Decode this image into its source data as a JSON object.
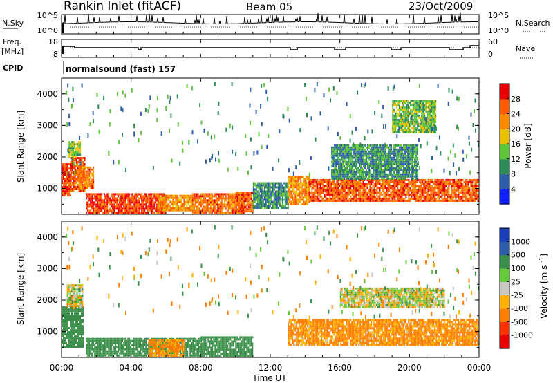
{
  "header": {
    "title": "Rankin Inlet (fitACF)",
    "beam": "Beam 05",
    "date": "23/Oct/2009"
  },
  "noise_panel": {
    "left_label": "N.Sky",
    "right_label": "N.Search",
    "left_ticks": [
      "10^5",
      "10^0"
    ],
    "right_ticks": [
      "10^5",
      "10^0"
    ]
  },
  "freq_panel": {
    "left_label_1": "Freq.",
    "left_label_2": "[MHz]",
    "right_label": "Nave",
    "left_ticks": [
      "18",
      "8"
    ],
    "right_ticks": [
      "60",
      "0"
    ]
  },
  "cpid": {
    "label": "CPID",
    "value": "normalsound (fast) 157"
  },
  "x_axis": {
    "title": "Time UT",
    "ticks": [
      "00:00",
      "04:00",
      "08:00",
      "12:00",
      "16:00",
      "20:00",
      "00:00"
    ]
  },
  "y_axis": {
    "title": "Slant Range [km]",
    "ticks": [
      "1000",
      "2000",
      "3000",
      "4000"
    ]
  },
  "power_colorbar": {
    "title": "Power [dB]",
    "ticks": [
      "4",
      "8",
      "12",
      "16",
      "20",
      "24",
      "28"
    ],
    "colors": [
      "#1020ff",
      "#2f5da8",
      "#2e8b57",
      "#5fc43a",
      "#e8c200",
      "#ff8c00",
      "#ff5a00",
      "#e80000"
    ]
  },
  "velocity_colorbar": {
    "title": "Velocity [m s^-1]",
    "ticks": [
      "1000",
      "500",
      "100",
      "25",
      "-25",
      "-100",
      "-500",
      "-1000"
    ],
    "colors": [
      "#1a3db8",
      "#2f5da8",
      "#3b8f4a",
      "#66c93a",
      "#c8c8c0",
      "#ffb000",
      "#ff7f00",
      "#ff3000",
      "#e80000"
    ]
  },
  "chart_data": {
    "type": "heatmap",
    "title": "Rankin Inlet (fitACF) Beam 05 23/Oct/2009",
    "xlabel": "Time UT",
    "ylabel": "Slant Range [km]",
    "xlim": [
      0,
      24
    ],
    "ylim": [
      180,
      4500
    ],
    "series": [
      {
        "name": "Power [dB]",
        "regions": [
          {
            "t": [
              0.0,
              0.5
            ],
            "range": [
              800,
              1800
            ],
            "value": 28
          },
          {
            "t": [
              0.5,
              1.3
            ],
            "range": [
              900,
              2000
            ],
            "value": 26
          },
          {
            "t": [
              0.4,
              1.1
            ],
            "range": [
              2000,
              2500
            ],
            "value": 14
          },
          {
            "t": [
              1.0,
              1.8
            ],
            "range": [
              1000,
              1700
            ],
            "value": 24
          },
          {
            "t": [
              1.4,
              6.0
            ],
            "range": [
              200,
              850
            ],
            "value": 28
          },
          {
            "t": [
              5.5,
              7.5
            ],
            "range": [
              300,
              800
            ],
            "value": 22
          },
          {
            "t": [
              7.5,
              10.5
            ],
            "range": [
              250,
              850
            ],
            "value": 24
          },
          {
            "t": [
              10.0,
              11.0
            ],
            "range": [
              300,
              900
            ],
            "value": 26
          },
          {
            "t": [
              11.0,
              13.0
            ],
            "range": [
              400,
              1200
            ],
            "value": 10
          },
          {
            "t": [
              13.0,
              14.2
            ],
            "range": [
              500,
              1400
            ],
            "value": 22
          },
          {
            "t": [
              14.2,
              24.0
            ],
            "range": [
              600,
              1300
            ],
            "value": 26
          },
          {
            "t": [
              15.5,
              20.5
            ],
            "range": [
              1300,
              2400
            ],
            "value": 10
          },
          {
            "t": [
              19.0,
              21.5
            ],
            "range": [
              2800,
              3800
            ],
            "value": 14
          }
        ]
      },
      {
        "name": "Velocity [m s^-1]",
        "regions": [
          {
            "t": [
              0.0,
              1.2
            ],
            "range": [
              500,
              1800
            ],
            "value": 300
          },
          {
            "t": [
              0.3,
              1.2
            ],
            "range": [
              1800,
              2500
            ],
            "value": 0
          },
          {
            "t": [
              1.4,
              8.0
            ],
            "range": [
              200,
              800
            ],
            "value": 300
          },
          {
            "t": [
              5.0,
              7.0
            ],
            "range": [
              200,
              750
            ],
            "value": -150
          },
          {
            "t": [
              8.0,
              11.0
            ],
            "range": [
              250,
              850
            ],
            "value": 300
          },
          {
            "t": [
              13.0,
              24.0
            ],
            "range": [
              600,
              1400
            ],
            "value": -150
          },
          {
            "t": [
              16.0,
              22.0
            ],
            "range": [
              1800,
              2400
            ],
            "value": 0
          }
        ]
      }
    ],
    "noise_range": [
      "10^0",
      "10^5"
    ],
    "freq_range_mhz": [
      8,
      18
    ],
    "nave_range": [
      0,
      60
    ]
  }
}
